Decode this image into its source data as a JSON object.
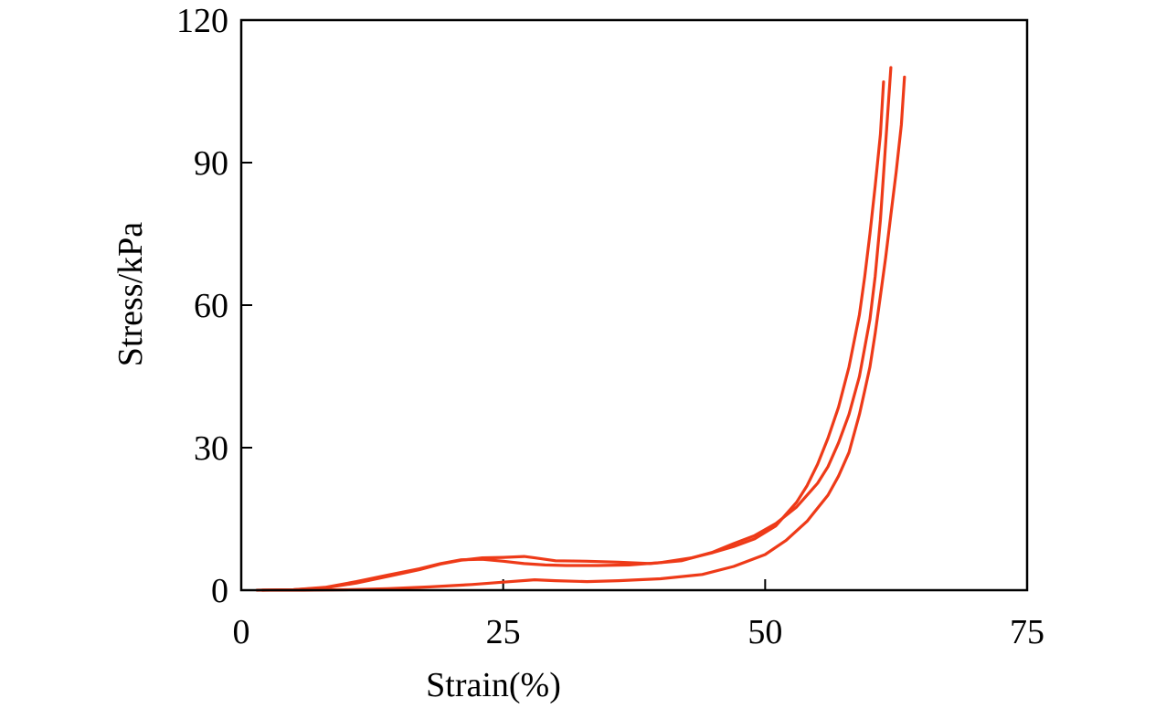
{
  "chart_data": {
    "type": "line",
    "title": "",
    "xlabel": "Strain(%)",
    "ylabel": "Stress/kPa",
    "xlim": [
      0,
      75
    ],
    "ylim": [
      0,
      120
    ],
    "xticks": [
      0,
      25,
      50,
      75
    ],
    "yticks": [
      0,
      30,
      60,
      90,
      120
    ],
    "xtick_labels": [
      "0",
      "25",
      "50",
      "75"
    ],
    "ytick_labels": [
      "0",
      "30",
      "60",
      "90",
      "120"
    ],
    "grid": false,
    "legend": "none",
    "line_color": "#ee3a18",
    "series": [
      {
        "x": [
          1.5,
          5,
          8,
          11,
          14,
          17,
          19,
          21,
          23,
          25,
          27,
          29,
          31,
          34,
          37,
          40,
          43,
          45,
          47,
          49,
          51,
          53,
          54,
          55,
          56,
          57,
          58,
          59,
          59.5,
          60,
          60.5,
          61,
          61.3
        ],
        "y": [
          0,
          0.1,
          0.6,
          1.8,
          3.2,
          4.5,
          5.6,
          6.4,
          6.5,
          6.1,
          5.6,
          5.3,
          5.2,
          5.2,
          5.3,
          5.8,
          6.8,
          7.9,
          9.2,
          10.8,
          13.5,
          18.5,
          22.0,
          26.5,
          32.0,
          38.5,
          47.0,
          58.0,
          66.0,
          75.0,
          85.0,
          96.0,
          107.0
        ]
      },
      {
        "x": [
          2,
          5,
          8,
          11,
          14,
          17,
          19,
          21,
          23,
          25,
          27,
          28,
          30,
          33,
          36,
          39,
          42,
          45,
          47,
          49,
          51,
          53,
          55,
          56,
          57,
          58,
          59,
          60,
          60.5,
          61,
          61.5,
          62
        ],
        "y": [
          0,
          0.1,
          0.5,
          1.5,
          2.9,
          4.3,
          5.5,
          6.3,
          6.8,
          6.9,
          7.1,
          6.8,
          6.2,
          6.1,
          5.9,
          5.6,
          6.2,
          8.0,
          9.8,
          11.5,
          14.0,
          17.5,
          22.5,
          26.0,
          31.0,
          37.0,
          45.0,
          57.0,
          66.0,
          78.0,
          94.0,
          110.0
        ]
      },
      {
        "x": [
          2,
          6,
          10,
          14,
          18,
          22,
          25,
          28,
          30,
          33,
          36,
          40,
          44,
          47,
          50,
          52,
          54,
          56,
          57,
          58,
          59,
          59.5,
          60,
          60.5,
          61,
          61.5,
          62,
          62.5,
          63,
          63.3
        ],
        "y": [
          0,
          0,
          0.1,
          0.3,
          0.7,
          1.2,
          1.7,
          2.2,
          2.0,
          1.8,
          2.0,
          2.4,
          3.3,
          5.0,
          7.5,
          10.5,
          14.5,
          20.0,
          24.0,
          29.0,
          37.0,
          42.0,
          47.0,
          54.0,
          62.0,
          70.0,
          79.0,
          88.0,
          98.0,
          108.0
        ]
      }
    ]
  }
}
